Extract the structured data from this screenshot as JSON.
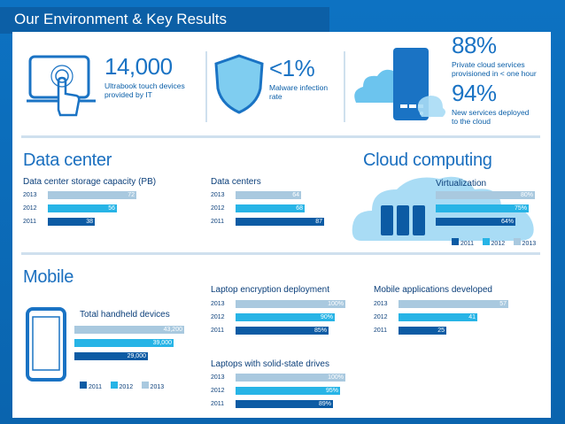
{
  "slide": {
    "title": "Our Environment & Key Results"
  },
  "kpis": {
    "ultrabook": {
      "value": "14,000",
      "caption_1": "Ultrabook touch devices",
      "caption_2": "provided by IT"
    },
    "malware": {
      "value": "<1%",
      "caption_1": "Malware infection",
      "caption_2": "rate"
    },
    "private_cloud": {
      "value": "88%",
      "caption_1": "Private cloud services",
      "caption_2": "provisioned in < one hour"
    },
    "new_services": {
      "value": "94%",
      "caption_1": "New services deployed",
      "caption_2": "to the cloud"
    }
  },
  "sections": {
    "data_center": "Data center",
    "cloud": "Cloud computing",
    "mobile": "Mobile"
  },
  "legend": {
    "y2011": "2011",
    "y2012": "2012",
    "y2013": "2013"
  },
  "colors": {
    "y2011": "#0c5ba4",
    "y2012": "#27b4e6",
    "y2013": "#a9c9df",
    "accent": "#1a73c4"
  },
  "chart_data": [
    {
      "type": "bar",
      "title": "Data center storage capacity (PB)",
      "categories": [
        "2013",
        "2012",
        "2011"
      ],
      "values": [
        72,
        56,
        38
      ],
      "labels": [
        "72",
        "56",
        "38"
      ]
    },
    {
      "type": "bar",
      "title": "Data centers",
      "categories": [
        "2013",
        "2012",
        "2011"
      ],
      "values": [
        64,
        68,
        87
      ],
      "labels": [
        "64",
        "68",
        "87"
      ]
    },
    {
      "type": "bar",
      "title": "Virtualization",
      "categories": [
        "2013",
        "2012",
        "2011"
      ],
      "values": [
        80,
        75,
        64
      ],
      "labels": [
        "80%",
        "75%",
        "64%"
      ]
    },
    {
      "type": "bar",
      "title": "Total handheld devices",
      "categories": [
        "2013",
        "2012",
        "2011"
      ],
      "values": [
        43200,
        39000,
        29000
      ],
      "labels": [
        "43,200",
        "39,000",
        "29,000"
      ]
    },
    {
      "type": "bar",
      "title": "Laptop encryption deployment",
      "categories": [
        "2013",
        "2012",
        "2011"
      ],
      "values": [
        100,
        90,
        85
      ],
      "labels": [
        "100%",
        "90%",
        "85%"
      ]
    },
    {
      "type": "bar",
      "title": "Mobile applications developed",
      "categories": [
        "2013",
        "2012",
        "2011"
      ],
      "values": [
        57,
        41,
        25
      ],
      "labels": [
        "57",
        "41",
        "25"
      ]
    },
    {
      "type": "bar",
      "title": "Laptops with solid-state drives",
      "categories": [
        "2013",
        "2012",
        "2011"
      ],
      "values": [
        100,
        95,
        89
      ],
      "labels": [
        "100%",
        "95%",
        "89%"
      ]
    }
  ]
}
